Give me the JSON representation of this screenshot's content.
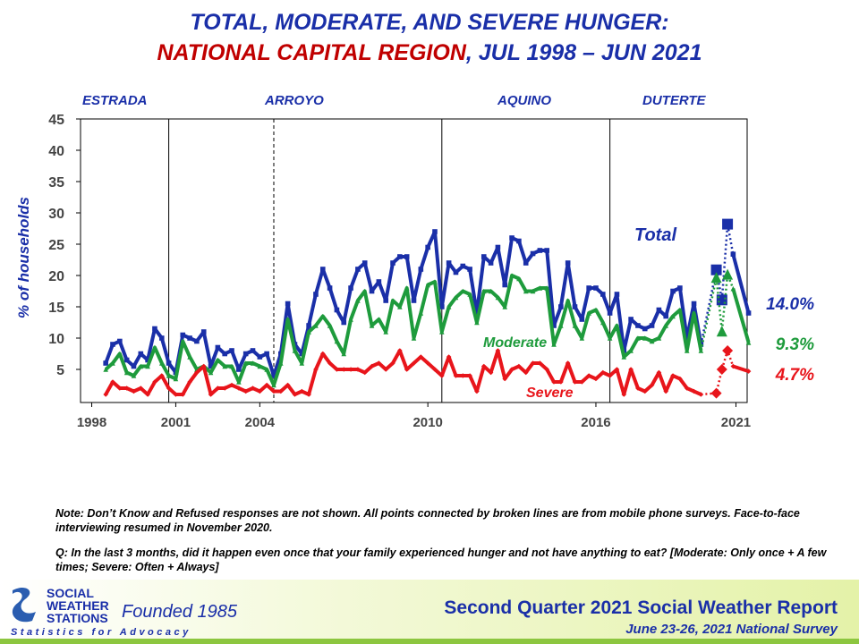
{
  "chart_data": {
    "type": "line",
    "title_parts": [
      {
        "text": "TOTAL, MODERATE, AND SEVERE HUNGER:",
        "color": "#1a2fa8"
      },
      {
        "text": "NATIONAL CAPITAL REGION",
        "color": "#c00000"
      },
      {
        "text": ", JUL 1998 – JUN 2021",
        "color": "#1a2fa8"
      }
    ],
    "y_label": "% of households",
    "eras": [
      "ESTRADA",
      "ARROYO",
      "AQUINO",
      "DUTERTE"
    ],
    "dividers": [
      {
        "x": 2000.75,
        "style": "solid"
      },
      {
        "x": 2004.5,
        "style": "dashed"
      },
      {
        "x": 2010.5,
        "style": "solid"
      },
      {
        "x": 2016.5,
        "style": "solid"
      }
    ],
    "mobile_surveys": [
      2020.2,
      2020.8
    ],
    "xlim": [
      1997.6,
      2021.4
    ],
    "xticks": [
      1998,
      2001,
      2004,
      2010,
      2016,
      2021
    ],
    "ylim": [
      0,
      45
    ],
    "yticks": [
      5,
      10,
      15,
      20,
      25,
      30,
      35,
      40,
      45
    ],
    "x": [
      1998.5,
      1998.75,
      1999,
      1999.25,
      1999.5,
      1999.75,
      2000,
      2000.25,
      2000.5,
      2000.75,
      2001,
      2001.25,
      2001.5,
      2001.75,
      2002,
      2002.25,
      2002.5,
      2002.75,
      2003,
      2003.25,
      2003.5,
      2003.75,
      2004,
      2004.25,
      2004.5,
      2004.75,
      2005,
      2005.25,
      2005.5,
      2005.75,
      2006,
      2006.25,
      2006.5,
      2006.75,
      2007,
      2007.25,
      2007.5,
      2007.75,
      2008,
      2008.25,
      2008.5,
      2008.75,
      2009,
      2009.25,
      2009.5,
      2009.75,
      2010,
      2010.25,
      2010.5,
      2010.75,
      2011,
      2011.25,
      2011.5,
      2011.75,
      2012,
      2012.25,
      2012.5,
      2012.75,
      2013,
      2013.25,
      2013.5,
      2013.75,
      2014,
      2014.25,
      2014.5,
      2014.75,
      2015,
      2015.25,
      2015.5,
      2015.75,
      2016,
      2016.25,
      2016.5,
      2016.75,
      2017,
      2017.25,
      2017.5,
      2017.75,
      2018,
      2018.25,
      2018.5,
      2018.75,
      2019,
      2019.25,
      2019.5,
      2019.75,
      2020.3,
      2020.5,
      2020.7,
      2020.9,
      2021.45
    ],
    "series": [
      {
        "name": "Total",
        "color": "#1a2fa8",
        "marker": "square",
        "last_label": "14.0%",
        "values": [
          6,
          9,
          9.5,
          6.5,
          5.5,
          7.5,
          6.5,
          11.5,
          10,
          6,
          4.5,
          10.5,
          10,
          9.5,
          11,
          5.5,
          8.5,
          7.5,
          8,
          5,
          7.5,
          8,
          7,
          7.5,
          4,
          7.5,
          15.5,
          9,
          7.5,
          12,
          17,
          21,
          18,
          14.5,
          12.5,
          18,
          21,
          22,
          17.5,
          19,
          16,
          22,
          23,
          23,
          16,
          21,
          24.5,
          27,
          15,
          22,
          20.5,
          21.5,
          21,
          14,
          23,
          22,
          24.5,
          18.5,
          26,
          25.5,
          22,
          23.5,
          24,
          24,
          12,
          15,
          22,
          15,
          13,
          18,
          18,
          17,
          14,
          17,
          8,
          13,
          12,
          11.5,
          12,
          14.5,
          13.5,
          17.5,
          18,
          10,
          15.5,
          9,
          20.9,
          16.1,
          28.2,
          23.4,
          14.0
        ]
      },
      {
        "name": "Moderate",
        "color": "#1e9b3c",
        "marker": "triangle",
        "last_label": "9.3%",
        "values": [
          5,
          6,
          7.5,
          4.5,
          4,
          5.5,
          5.5,
          8.5,
          6,
          4,
          3.5,
          9.5,
          7,
          5,
          5.5,
          4.5,
          6.5,
          5.5,
          5.5,
          3,
          6,
          6,
          5.5,
          5,
          2.5,
          6,
          13,
          8,
          6,
          11,
          12,
          13.5,
          12,
          9.5,
          7.5,
          13,
          16,
          17.5,
          12,
          13,
          11,
          16,
          15,
          18,
          10,
          14,
          18.5,
          19,
          11,
          15,
          16.5,
          17.5,
          17,
          12.5,
          17.5,
          17.5,
          16.5,
          15,
          20,
          19.5,
          17.5,
          17.5,
          18,
          18,
          9,
          12,
          16,
          12,
          10,
          14,
          14.5,
          12.5,
          10,
          12,
          7,
          8,
          10,
          10,
          9.5,
          10,
          12,
          13.5,
          14.5,
          8,
          14,
          8,
          19.7,
          11.1,
          20.2,
          17.9,
          9.3
        ]
      },
      {
        "name": "Severe",
        "color": "#e8151b",
        "marker": "diamond",
        "last_label": "4.7%",
        "values": [
          1,
          3,
          2,
          2,
          1.5,
          2,
          1,
          3,
          4,
          2,
          1,
          1,
          3,
          4.5,
          5.5,
          1,
          2,
          2,
          2.5,
          2,
          1.5,
          2,
          1.5,
          2.5,
          1.5,
          1.5,
          2.5,
          1,
          1.5,
          1,
          5,
          7.5,
          6,
          5,
          5,
          5,
          5,
          4.5,
          5.5,
          6,
          5,
          6,
          8,
          5,
          6,
          7,
          6,
          5,
          4,
          7,
          4,
          4,
          4,
          1.5,
          5.5,
          4.5,
          8,
          3.5,
          5,
          5.5,
          4.5,
          6,
          6,
          5,
          3,
          3,
          6,
          3,
          3,
          4,
          3.5,
          4.5,
          4,
          5,
          1,
          5,
          2,
          1.5,
          2.5,
          4.5,
          1.5,
          4,
          3.5,
          2,
          1.5,
          1,
          1.2,
          5.0,
          8.0,
          5.5,
          4.7
        ]
      }
    ]
  },
  "notes": [
    "Note: Don’t Know and Refused responses are not shown. All points connected by broken lines are from mobile phone surveys. Face-to-face interviewing resumed in November 2020.",
    "Q: In the last 3 months, did it happen even once that your family experienced hunger and not have anything to eat? [Moderate: Only once + A few times; Severe: Often + Always]"
  ],
  "footer": {
    "org": [
      "SOCIAL",
      "WEATHER",
      "STATIONS"
    ],
    "founded": "Founded 1985",
    "tagline": "Statistics for Advocacy",
    "report": "Second Quarter 2021 Social Weather Report",
    "survey": "June 23-26, 2021 National Survey"
  }
}
